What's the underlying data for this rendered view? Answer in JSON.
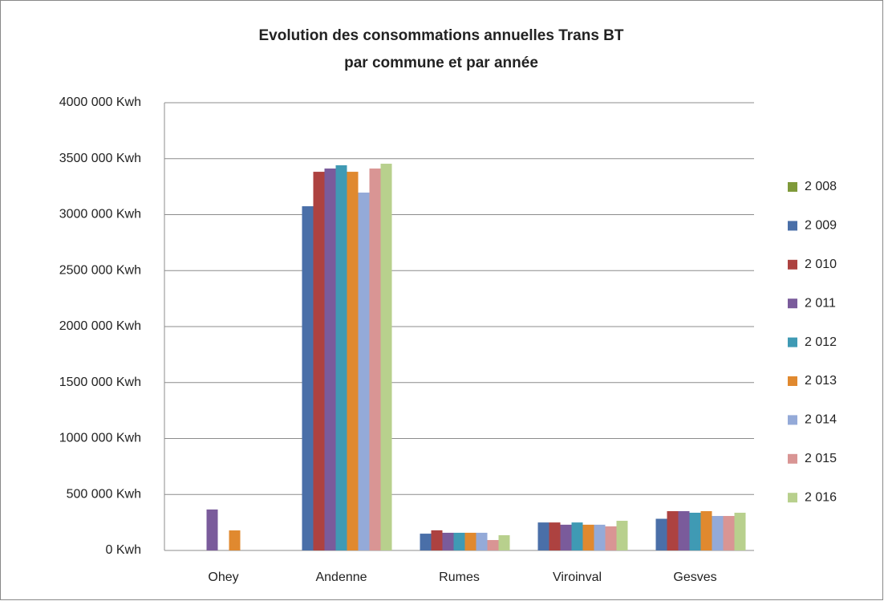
{
  "chart_data": {
    "type": "bar",
    "title": [
      "Evolution des consommations annuelles Trans BT",
      "par commune et par année"
    ],
    "categories": [
      "Ohey",
      "Andenne",
      "Rumes",
      "Viroinval",
      "Gesves"
    ],
    "series": [
      {
        "name": "2 008",
        "color": "#7f9a3a",
        "values": [
          null,
          null,
          null,
          null,
          null
        ]
      },
      {
        "name": "2 009",
        "color": "#4a6fa8",
        "values": [
          null,
          3075000,
          150000,
          250000,
          283000
        ]
      },
      {
        "name": "2 010",
        "color": "#ad4240",
        "values": [
          null,
          3383000,
          180000,
          250000,
          351000
        ]
      },
      {
        "name": "2 011",
        "color": "#7a5b9b",
        "values": [
          366000,
          3412000,
          158000,
          230000,
          351000
        ]
      },
      {
        "name": "2 012",
        "color": "#3f9ab4",
        "values": [
          null,
          3441000,
          158000,
          250000,
          337000
        ]
      },
      {
        "name": "2 013",
        "color": "#e0892f",
        "values": [
          179000,
          3383000,
          158000,
          230000,
          351000
        ]
      },
      {
        "name": "2 014",
        "color": "#94aad8",
        "values": [
          null,
          3197000,
          158000,
          230000,
          308000
        ]
      },
      {
        "name": "2 015",
        "color": "#d99594",
        "values": [
          null,
          3412000,
          93000,
          215000,
          308000
        ]
      },
      {
        "name": "2 016",
        "color": "#b8d08d",
        "values": [
          null,
          3455000,
          136000,
          265000,
          337000
        ]
      }
    ],
    "ylim": [
      0,
      4000000
    ],
    "yticks": [
      {
        "value": 0,
        "label": "0 Kwh"
      },
      {
        "value": 500000,
        "label": "500 000 Kwh"
      },
      {
        "value": 1000000,
        "label": "1000 000 Kwh"
      },
      {
        "value": 1500000,
        "label": "1500 000 Kwh"
      },
      {
        "value": 2000000,
        "label": "2000 000 Kwh"
      },
      {
        "value": 2500000,
        "label": "2500 000 Kwh"
      },
      {
        "value": 3000000,
        "label": "3000 000 Kwh"
      },
      {
        "value": 3500000,
        "label": "3500 000 Kwh"
      },
      {
        "value": 4000000,
        "label": "4000 000 Kwh"
      }
    ],
    "grid": true,
    "legend": "right"
  }
}
